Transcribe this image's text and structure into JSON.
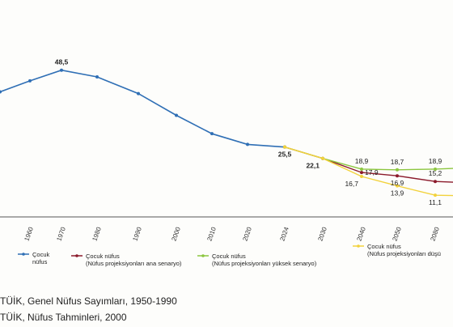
{
  "chart_data": {
    "type": "line",
    "x_ticks": [
      "1950",
      "1960",
      "1970",
      "1980",
      "1990",
      "2000",
      "2010",
      "2020",
      "2024",
      "2030",
      "2040",
      "2050",
      "2060",
      "2080"
    ],
    "series": [
      {
        "name": "Çocuk nüfus",
        "color": "#2f6fb5",
        "points": [
          [
            1950,
            42.0
          ],
          [
            1960,
            45.3
          ],
          [
            1970,
            48.5
          ],
          [
            1980,
            46.5
          ],
          [
            1990,
            41.5
          ],
          [
            2000,
            35.0
          ],
          [
            2010,
            29.5
          ],
          [
            2020,
            26.3
          ],
          [
            2024,
            25.5
          ]
        ]
      },
      {
        "name": "Çocuk nüfus (Nüfus projeksiyonları ana senaryo)",
        "color": "#8b1a2b",
        "points": [
          [
            2024,
            25.5
          ],
          [
            2030,
            22.1
          ],
          [
            2040,
            17.9
          ],
          [
            2050,
            16.9
          ],
          [
            2060,
            15.2
          ],
          [
            2080,
            15.0
          ]
        ]
      },
      {
        "name": "Çocuk nüfus (Nüfus projeksiyonları yüksek senaryo)",
        "color": "#8cc63f",
        "points": [
          [
            2024,
            25.5
          ],
          [
            2030,
            22.1
          ],
          [
            2040,
            18.9
          ],
          [
            2050,
            18.7
          ],
          [
            2060,
            18.9
          ],
          [
            2080,
            19.1
          ]
        ]
      },
      {
        "name": "Çocuk nüfus (Nüfus projeksiyonları düşük senaryo)",
        "color": "#f2d23c",
        "points": [
          [
            2024,
            25.5
          ],
          [
            2030,
            22.1
          ],
          [
            2040,
            16.7
          ],
          [
            2050,
            13.9
          ],
          [
            2060,
            11.1
          ],
          [
            2080,
            11.0
          ]
        ]
      }
    ],
    "data_labels": [
      {
        "x": 1970,
        "y": 48.5,
        "text": "48,5",
        "pos": "above",
        "bold": true
      },
      {
        "x": 2024,
        "y": 25.5,
        "text": "25,5",
        "pos": "below",
        "bold": true
      },
      {
        "x": 2030,
        "y": 22.1,
        "text": "22,1",
        "pos": "below-left",
        "bold": true
      },
      {
        "x": 2040,
        "y": 18.9,
        "text": "18,9",
        "pos": "above"
      },
      {
        "x": 2040,
        "y": 17.9,
        "text": "17,9",
        "pos": "right"
      },
      {
        "x": 2040,
        "y": 16.7,
        "text": "16,7",
        "pos": "below-left"
      },
      {
        "x": 2050,
        "y": 18.7,
        "text": "18,7",
        "pos": "above"
      },
      {
        "x": 2050,
        "y": 16.9,
        "text": "16,9",
        "pos": "below"
      },
      {
        "x": 2050,
        "y": 13.9,
        "text": "13,9",
        "pos": "below"
      },
      {
        "x": 2060,
        "y": 18.9,
        "text": "18,9",
        "pos": "above"
      },
      {
        "x": 2060,
        "y": 15.2,
        "text": "15,2",
        "pos": "above"
      },
      {
        "x": 2060,
        "y": 11.1,
        "text": "11,1",
        "pos": "below"
      }
    ],
    "legend": [
      {
        "line1": "Çocuk",
        "line2": "nüfus",
        "color": "#2f6fb5"
      },
      {
        "line1": "Çocuk nüfus",
        "line2": "(Nüfus projeksiyonları ana senaryo)",
        "color": "#8b1a2b"
      },
      {
        "line1": "Çocuk nüfus",
        "line2": "(Nüfus projeksiyonları yüksek senaryo)",
        "color": "#8cc63f"
      },
      {
        "line1": "Çocuk nüfus",
        "line2": "(Nüfus projeksiyonları düşü",
        "color": "#f2d23c"
      }
    ]
  },
  "sources": [
    "TÜİK, Genel Nüfus Sayımları, 1950-1990",
    "TÜİK, Nüfus Tahminleri, 2000"
  ]
}
